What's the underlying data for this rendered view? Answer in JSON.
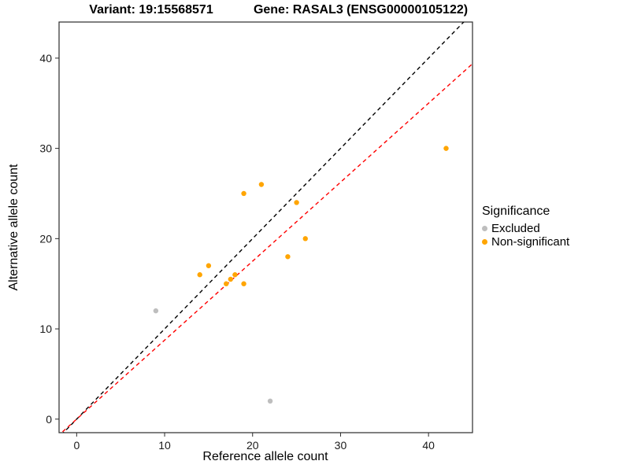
{
  "titles": {
    "variant": "Variant: 19:15568571",
    "gene": "Gene: RASAL3 (ENSG00000105122)"
  },
  "legend": {
    "title": "Significance",
    "items": [
      {
        "label": "Excluded",
        "color": "#bebebe"
      },
      {
        "label": "Non-significant",
        "color": "#ffa500"
      }
    ]
  },
  "chart_data": {
    "type": "scatter",
    "title": "Variant: 19:15568571   Gene: RASAL3 (ENSG00000105122)",
    "xlabel": "Reference allele count",
    "ylabel": "Alternative allele count",
    "xlim": [
      -2,
      45
    ],
    "ylim": [
      -1.5,
      44
    ],
    "x_ticks": [
      0,
      10,
      20,
      30,
      40
    ],
    "y_ticks": [
      0,
      10,
      20,
      30,
      40
    ],
    "grid": false,
    "legend_position": "right",
    "series": [
      {
        "name": "Excluded",
        "color": "#bebebe",
        "points": [
          [
            9,
            12
          ],
          [
            22,
            2
          ]
        ]
      },
      {
        "name": "Non-significant",
        "color": "#ffa500",
        "points": [
          [
            14,
            16
          ],
          [
            15,
            17
          ],
          [
            17,
            15
          ],
          [
            17.5,
            15.5
          ],
          [
            18,
            16
          ],
          [
            19,
            15
          ],
          [
            19,
            25
          ],
          [
            21,
            26
          ],
          [
            24,
            18
          ],
          [
            25,
            24
          ],
          [
            26,
            20
          ],
          [
            42,
            30
          ]
        ]
      }
    ],
    "lines": [
      {
        "name": "identity-line",
        "color": "#000000",
        "style": "dashed",
        "slope": 1,
        "intercept": 0
      },
      {
        "name": "fit-line",
        "color": "#ff0000",
        "style": "dashed",
        "slope": 0.875,
        "intercept": 0
      }
    ]
  }
}
